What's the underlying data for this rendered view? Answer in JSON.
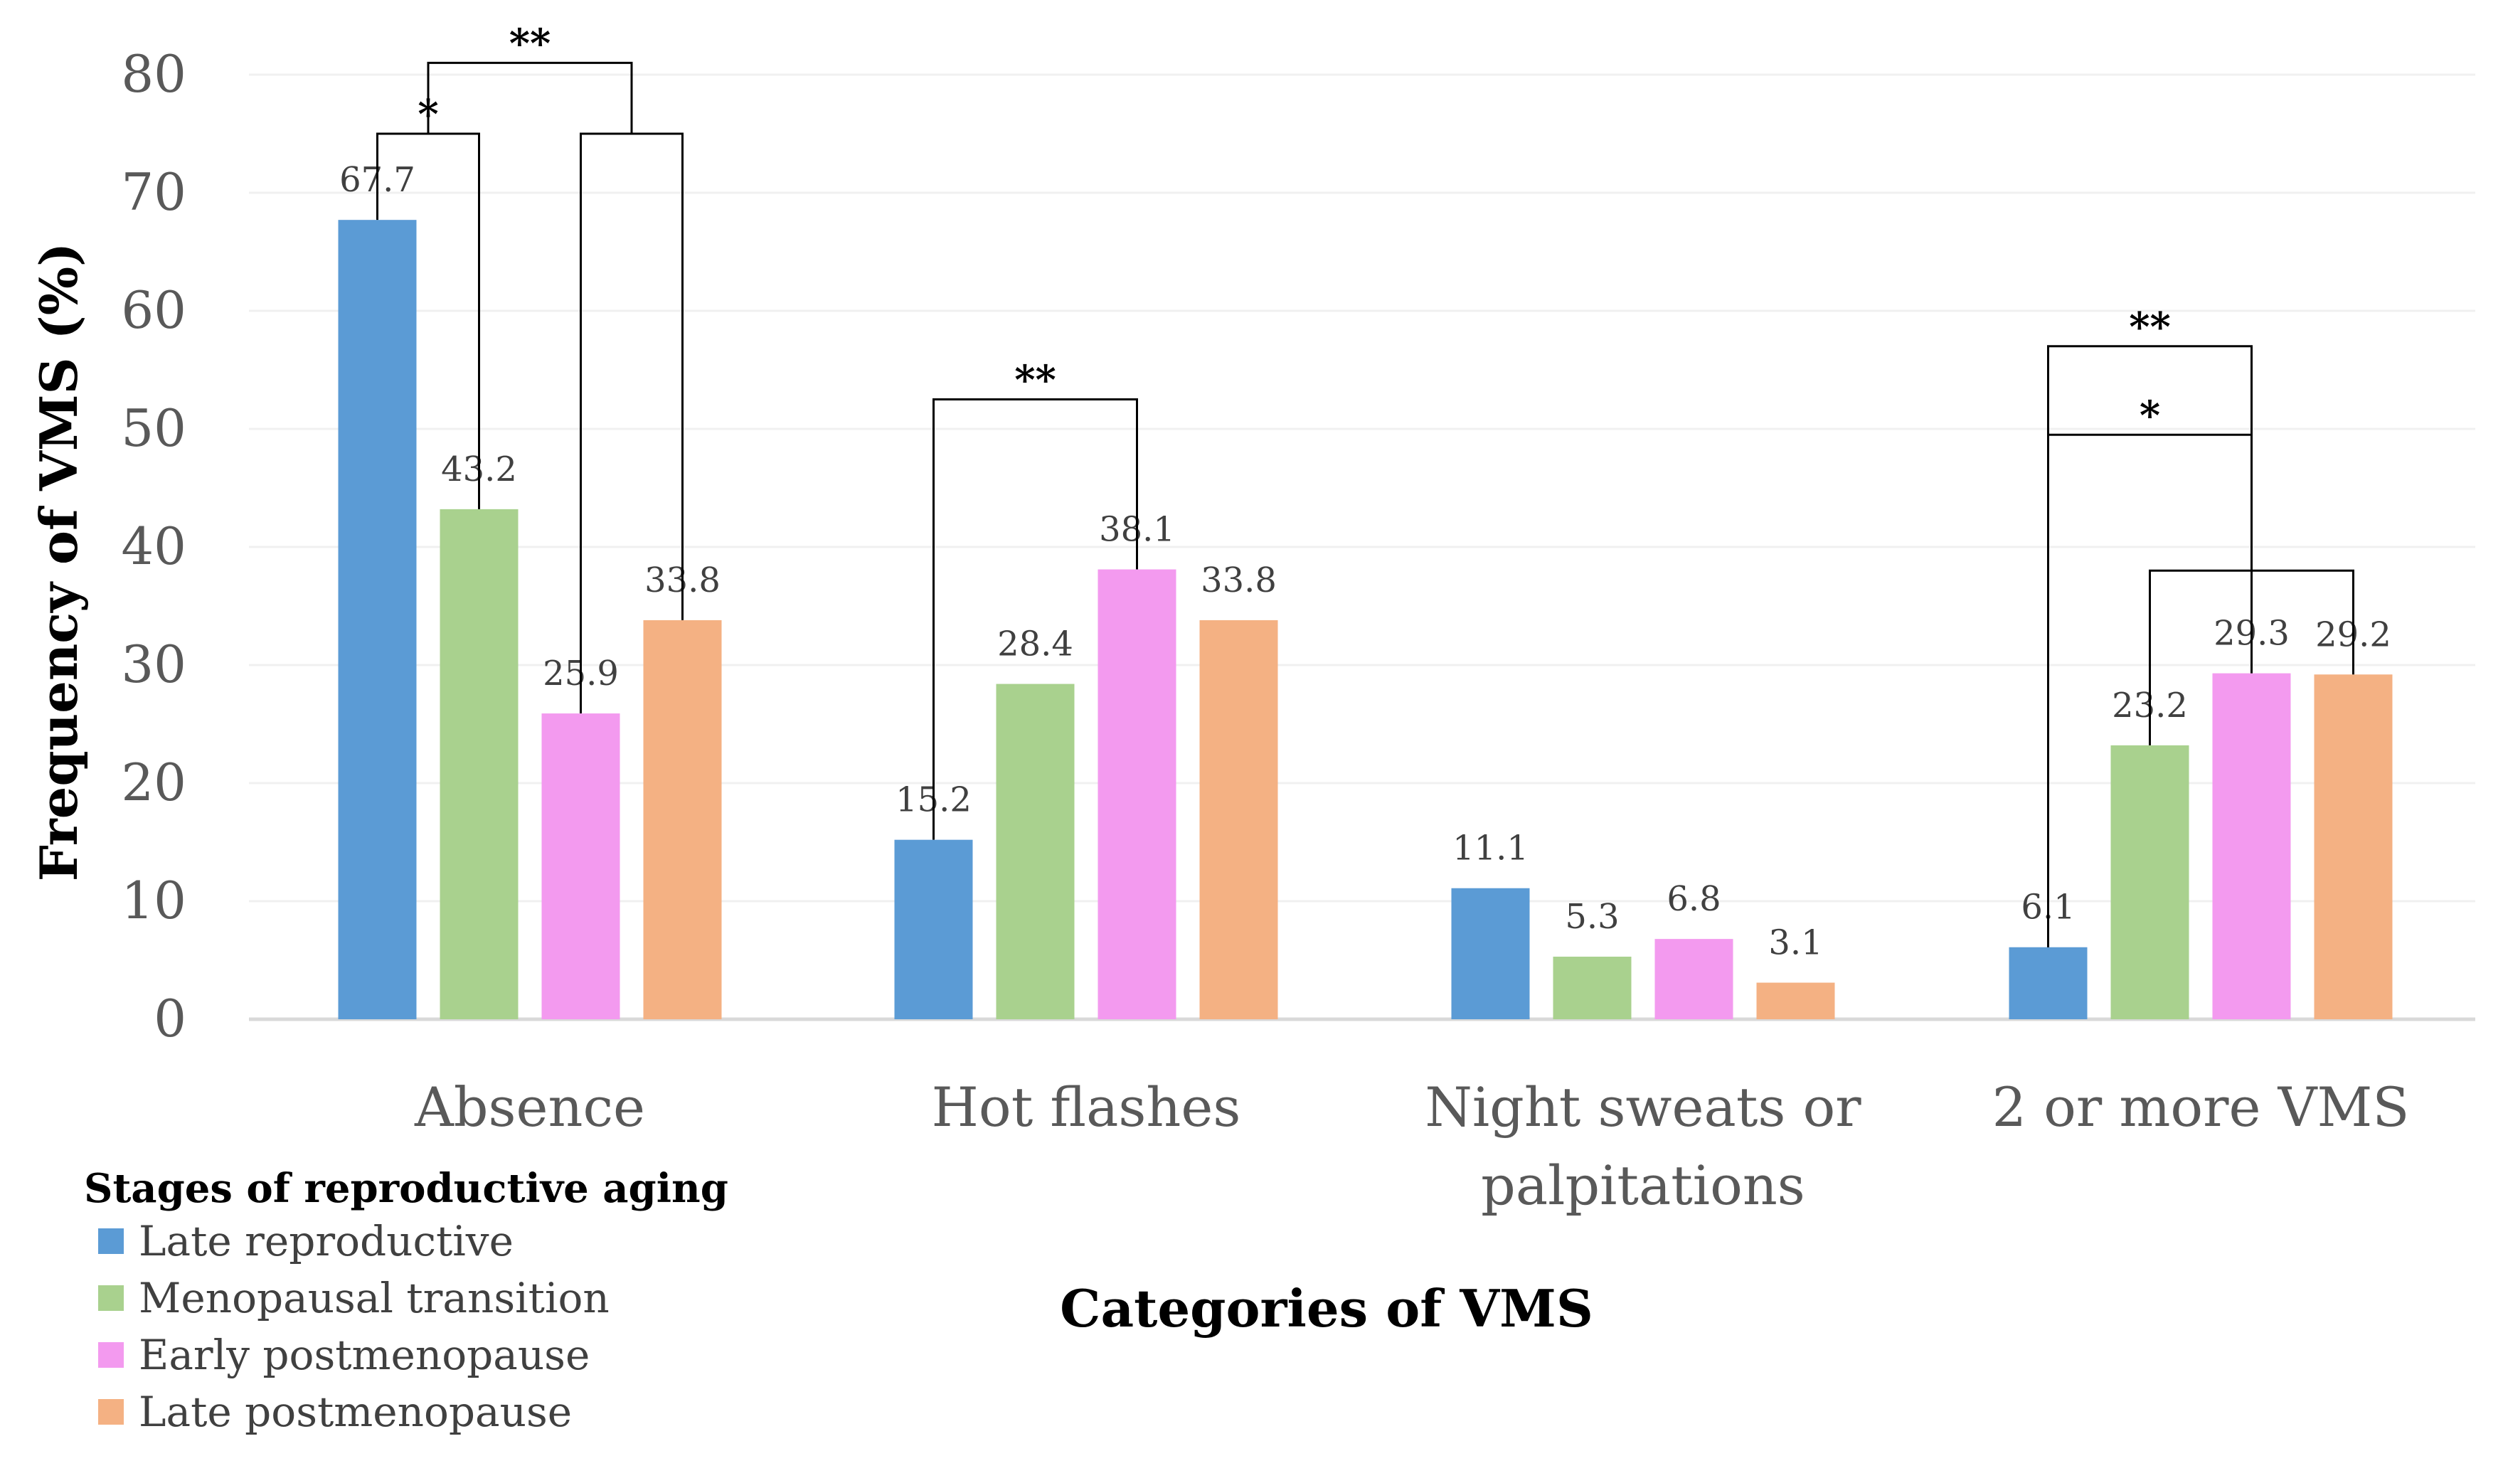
{
  "chart_data": {
    "type": "bar",
    "categories": [
      [
        "Absence"
      ],
      [
        "Hot flashes"
      ],
      [
        "Night sweats or",
        "palpitations"
      ],
      [
        "2 or more VMS"
      ]
    ],
    "series": [
      {
        "name": "Late reproductive",
        "color": "#5B9BD5",
        "values": [
          67.7,
          15.2,
          11.1,
          6.1
        ],
        "labels": [
          "67.7",
          "15.2",
          "11.1",
          "6.1"
        ]
      },
      {
        "name": "Menopausal transition",
        "color": "#A9D18E",
        "values": [
          43.2,
          28.4,
          5.3,
          23.2
        ],
        "labels": [
          "43.2",
          "28.4",
          "5.3",
          "23.2"
        ]
      },
      {
        "name": "Early postmenopause",
        "color": "#F39AEF",
        "values": [
          25.9,
          38.1,
          6.8,
          29.3
        ],
        "labels": [
          "25.9",
          "38.1",
          "6.8",
          "29.3"
        ]
      },
      {
        "name": "Late postmenopause",
        "color": "#F4B183",
        "values": [
          33.8,
          33.8,
          3.1,
          29.2
        ],
        "labels": [
          "33.8",
          "33.8",
          "3.1",
          "29.2"
        ]
      }
    ],
    "ylim": [
      0,
      80
    ],
    "yticks": [
      0,
      10,
      20,
      30,
      40,
      50,
      60,
      70,
      80
    ],
    "ylabel": "Frequency of VMS (%)",
    "xlabel": "Categories of VMS",
    "legend_title": "Stages of reproductive aging",
    "legend_position": "bottom-left",
    "grid": true,
    "significance": [
      {
        "category": 0,
        "from": 0,
        "to": 1,
        "label": "*",
        "level": 75
      },
      {
        "category": 0,
        "from": 2,
        "to": 3,
        "label": "",
        "level": 75
      },
      {
        "category": 0,
        "from": "bracket:0",
        "to": "bracket:1",
        "label": "**",
        "level": 81
      },
      {
        "category": 1,
        "from": 0,
        "to": 2,
        "label": "**",
        "level": 52.5
      },
      {
        "category": 3,
        "from": 1,
        "to": 3,
        "label": "",
        "level": 38
      },
      {
        "category": 3,
        "from": 0,
        "to": "bracket:4",
        "label": "*",
        "level": 49.5
      },
      {
        "category": 3,
        "from": 0,
        "to": 2,
        "label": "**",
        "level": 57
      }
    ]
  }
}
